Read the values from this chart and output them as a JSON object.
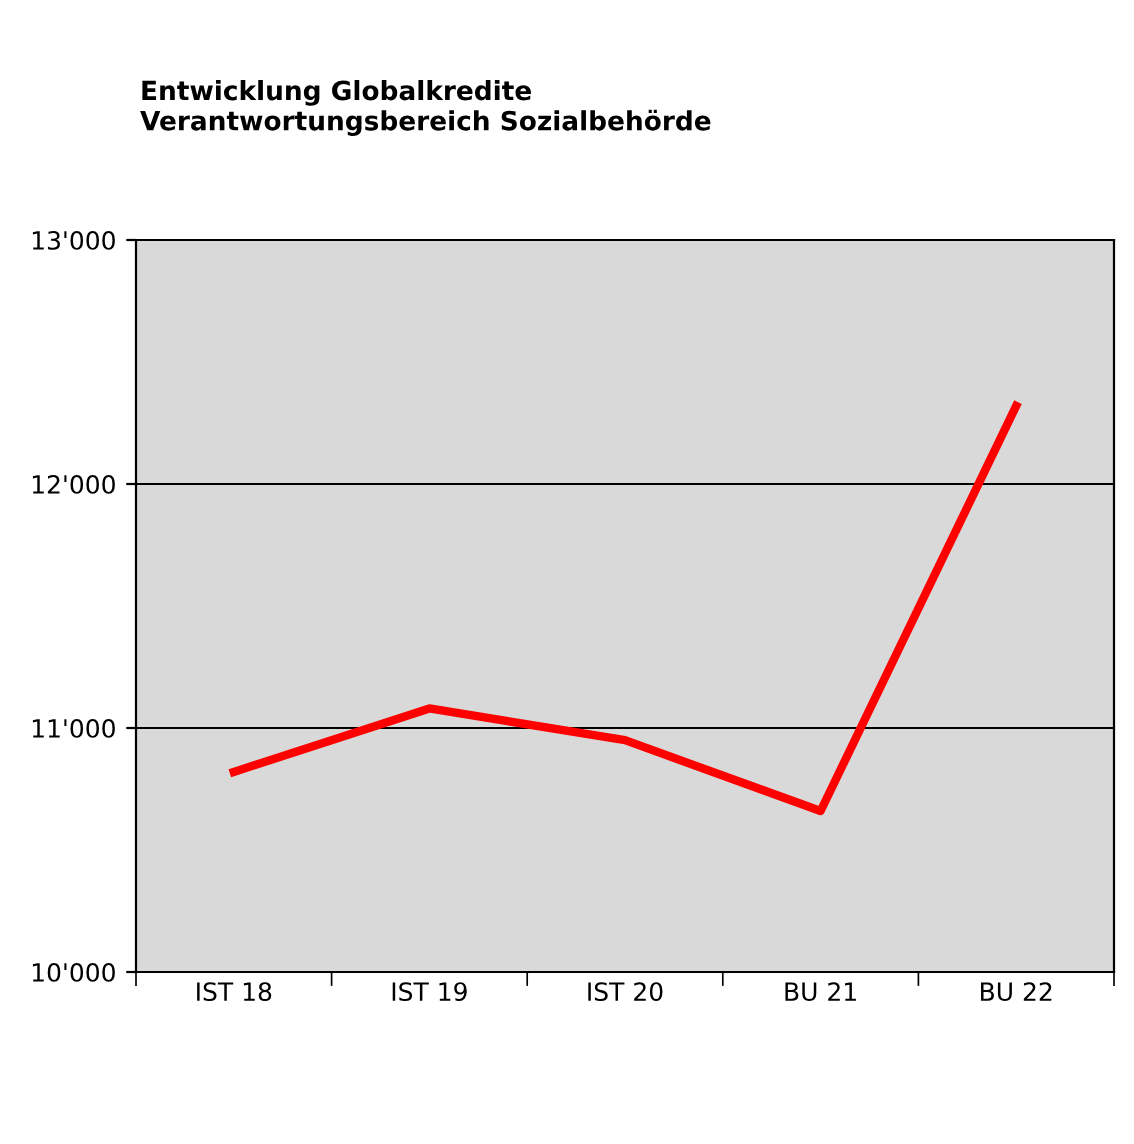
{
  "chart_data": {
    "type": "line",
    "title": "Entwicklung Globalkredite\nVerantwortungsbereich Sozialbehörde",
    "categories": [
      "IST 18",
      "IST 19",
      "IST 20",
      "BU 21",
      "BU 22"
    ],
    "series": [
      {
        "color": "#ff0000",
        "values": [
          10820,
          11080,
          10950,
          10660,
          12320
        ]
      }
    ],
    "ylim": [
      10000,
      13000
    ],
    "yticks": [
      {
        "value": 10000,
        "label": "10'000"
      },
      {
        "value": 11000,
        "label": "11'000"
      },
      {
        "value": 12000,
        "label": "12'000"
      },
      {
        "value": 13000,
        "label": "13'000"
      }
    ],
    "grid": "y",
    "legend": false,
    "marker": "none",
    "line_style": "solid"
  }
}
